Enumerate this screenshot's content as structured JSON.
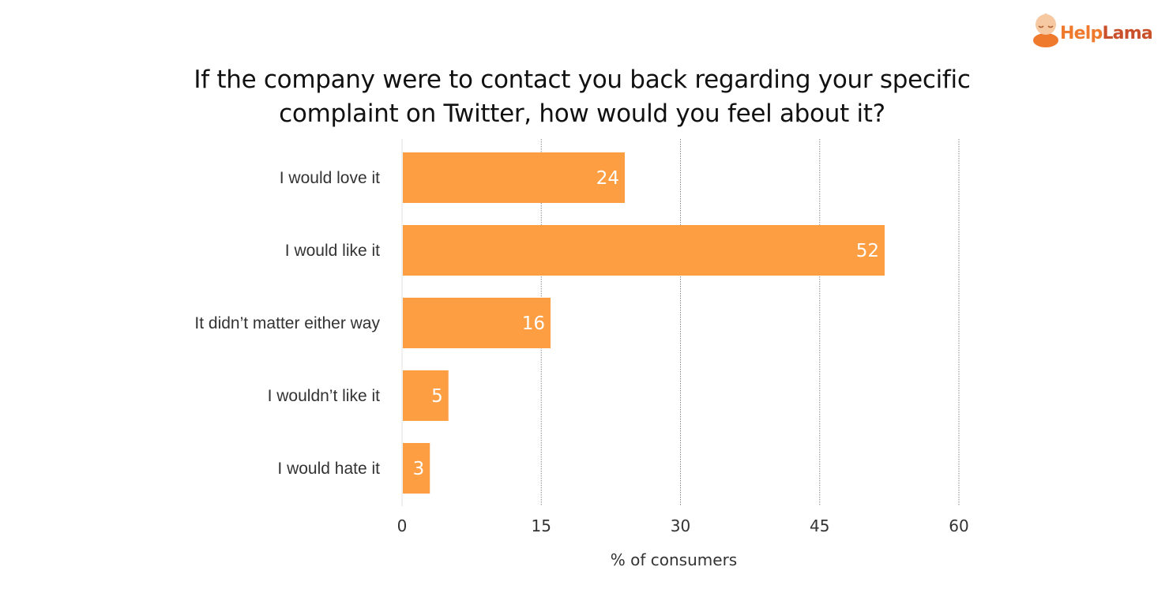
{
  "brand": {
    "logo_text_help": "Help",
    "logo_text_lama": "Lama",
    "colors": {
      "orange": "#ef7a2e",
      "dark_orange": "#c9502a"
    }
  },
  "chart_data": {
    "type": "bar",
    "orientation": "horizontal",
    "title": "If the company were to contact you back regarding your specific\ncomplaint  on  Twitter, how would you feel about it?",
    "categories": [
      "I would love it",
      "I would like it",
      "It didn’t matter either way",
      "I wouldn’t like it",
      "I would hate it"
    ],
    "values": [
      24,
      52,
      16,
      5,
      3
    ],
    "xlabel": "% of consumers",
    "ylabel": "",
    "xlim": [
      0,
      60
    ],
    "xticks": [
      0,
      15,
      30,
      45,
      60
    ],
    "grid": "vertical dotted",
    "bar_color": "#fd9e43",
    "data_labels": true
  }
}
